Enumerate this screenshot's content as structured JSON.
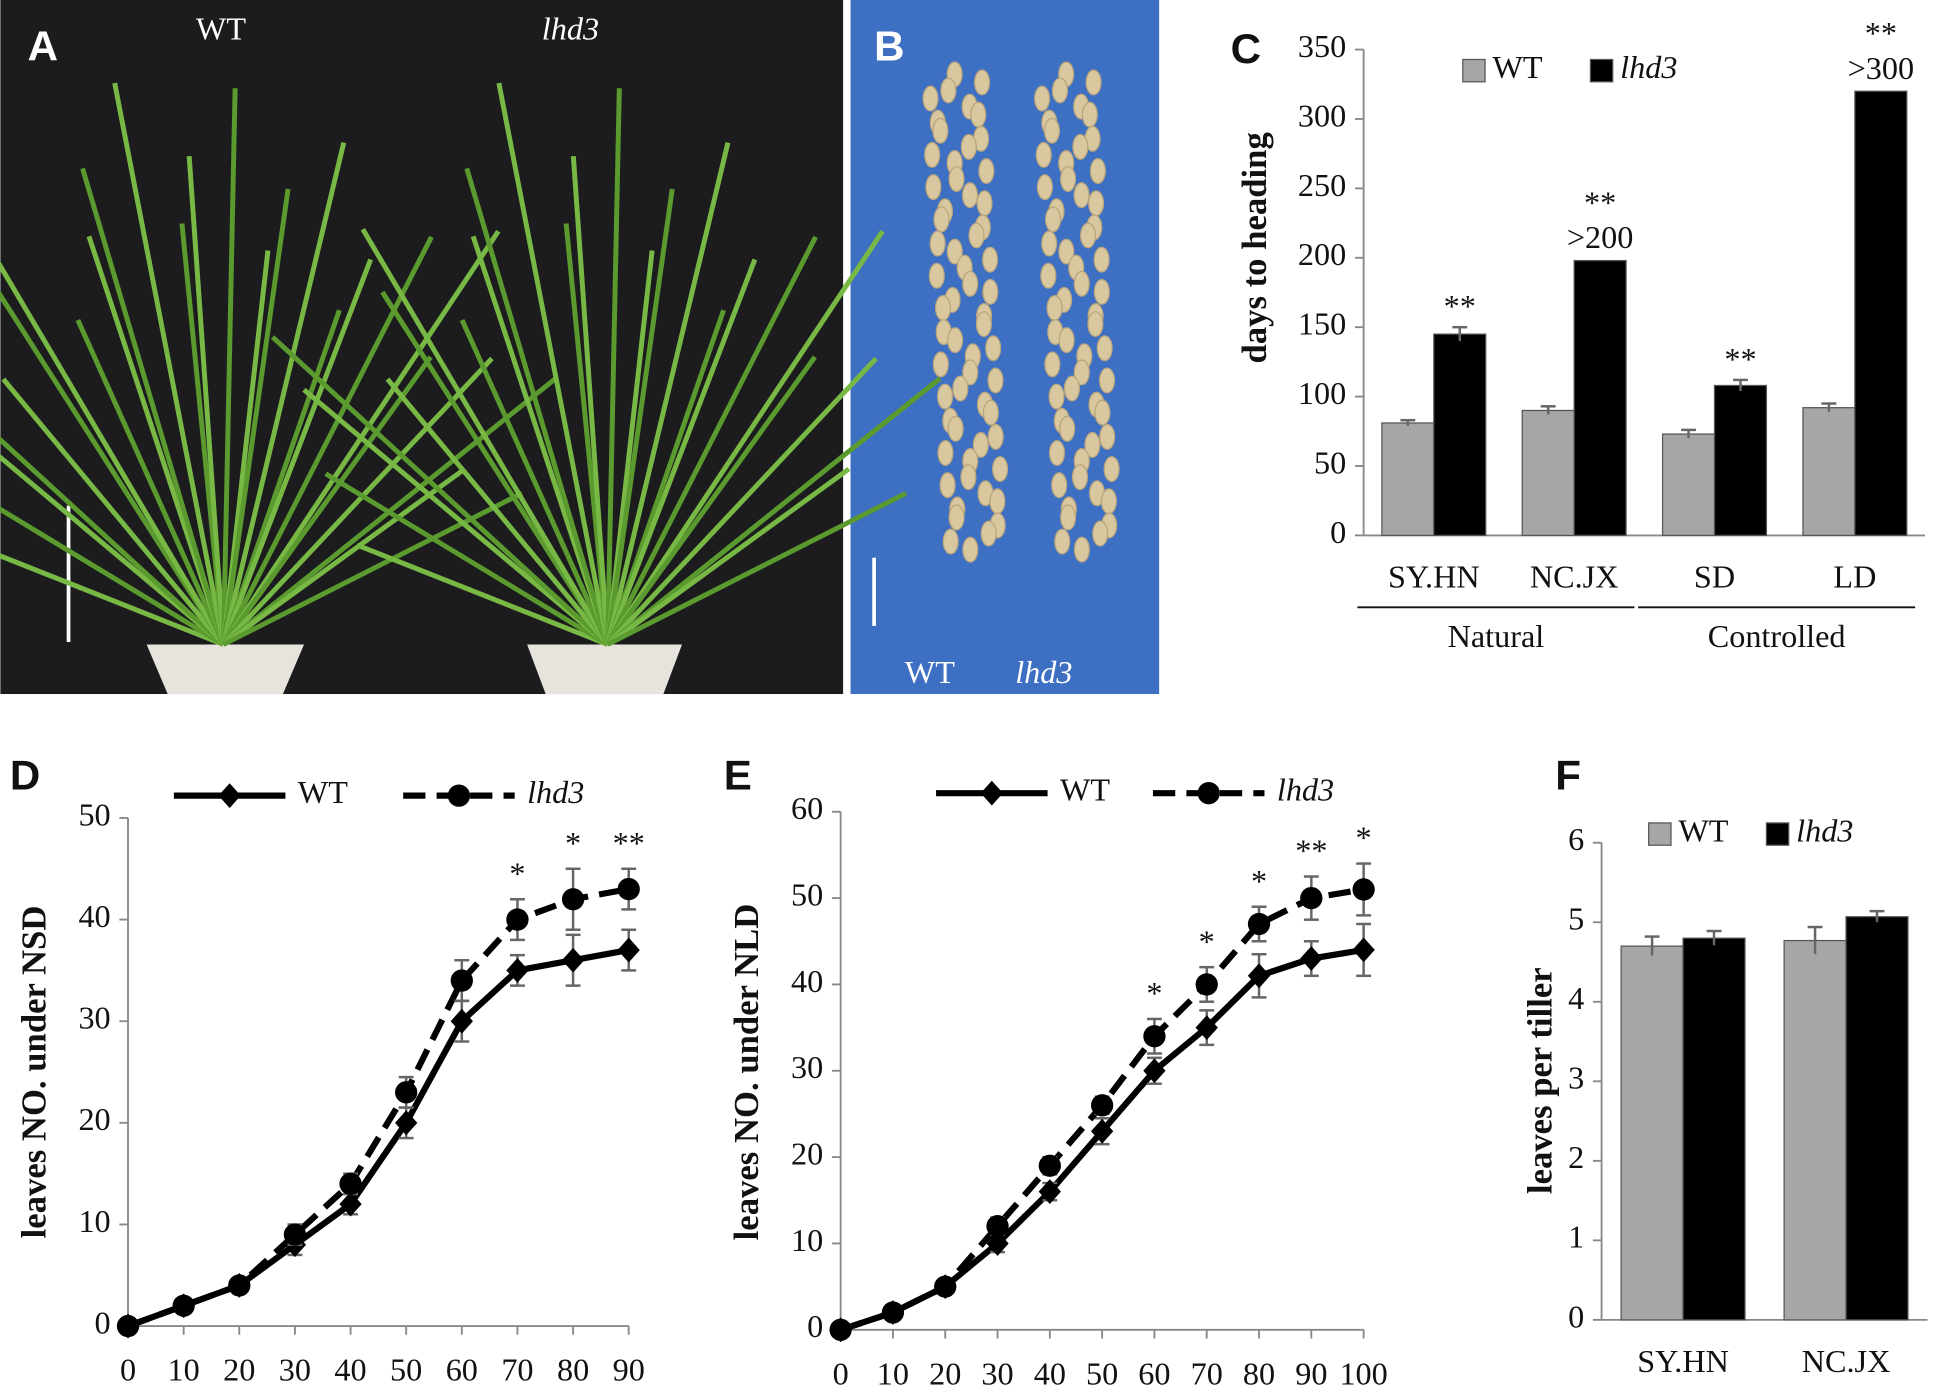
{
  "photo_panels": [
    {
      "panel": "A",
      "labels": [
        "WT",
        "lhd3"
      ]
    },
    {
      "panel": "B",
      "labels": [
        "WT",
        "lhd3"
      ]
    }
  ],
  "chart_data": [
    {
      "type": "bar",
      "panel": "C",
      "y_label": "days to heading",
      "categories": [
        "SY.HN",
        "NC.JX",
        "SD",
        "LD"
      ],
      "groups": [
        {
          "name": "Natural",
          "span": 2
        },
        {
          "name": "Controlled",
          "span": 2
        }
      ],
      "series": [
        {
          "name": "WT",
          "color": "#a6a6a6",
          "values": [
            81,
            90,
            73,
            92
          ],
          "errors": [
            2,
            3,
            3,
            3
          ]
        },
        {
          "name": "lhd3",
          "color": "#000000",
          "values": [
            145,
            198,
            108,
            320
          ],
          "errors": [
            5,
            null,
            4,
            null
          ],
          "significance": [
            "**",
            "**",
            "**",
            "**"
          ]
        }
      ],
      "annotations": [
        {
          "category": 1,
          "text": ">200"
        },
        {
          "category": 3,
          "text": ">300"
        }
      ],
      "ylim": [
        0,
        350
      ],
      "yticks": [
        0,
        50,
        100,
        150,
        200,
        250,
        300,
        350
      ]
    },
    {
      "type": "line",
      "panel": "D",
      "y_label": "leaves NO. under NSD",
      "x": [
        0,
        10,
        20,
        30,
        40,
        50,
        60,
        70,
        80,
        90
      ],
      "series": [
        {
          "name": "WT",
          "color": "#000000",
          "marker": "diamond",
          "dashed": false,
          "values": [
            0,
            2,
            4,
            8,
            12,
            20,
            30,
            35,
            36,
            37
          ],
          "errors": [
            0,
            0.3,
            0.3,
            1,
            1,
            1.5,
            2,
            1.5,
            2.5,
            2
          ]
        },
        {
          "name": "lhd3",
          "color": "#000000",
          "marker": "circle",
          "dashed": true,
          "values": [
            0,
            2,
            4,
            9,
            14,
            23,
            34,
            40,
            42,
            43
          ],
          "errors": [
            0,
            0.3,
            0.3,
            1,
            1,
            1.5,
            2,
            2,
            3,
            2
          ],
          "significance": [
            null,
            null,
            null,
            null,
            null,
            null,
            null,
            "*",
            "*",
            "**"
          ]
        }
      ],
      "xlim": [
        0,
        90
      ],
      "xticks": [
        0,
        10,
        20,
        30,
        40,
        50,
        60,
        70,
        80,
        90
      ],
      "ylim": [
        0,
        50
      ],
      "yticks": [
        0,
        10,
        20,
        30,
        40,
        50
      ]
    },
    {
      "type": "line",
      "panel": "E",
      "y_label": "leaves NO. under NLD",
      "x": [
        0,
        10,
        20,
        30,
        40,
        50,
        60,
        70,
        80,
        90,
        100
      ],
      "series": [
        {
          "name": "WT",
          "color": "#000000",
          "marker": "diamond",
          "dashed": false,
          "values": [
            0,
            2,
            5,
            10,
            16,
            23,
            30,
            35,
            41,
            43,
            44
          ],
          "errors": [
            0,
            0.3,
            0.5,
            1,
            1,
            1.5,
            1.5,
            2,
            2.5,
            2,
            3
          ]
        },
        {
          "name": "lhd3",
          "color": "#000000",
          "marker": "circle",
          "dashed": true,
          "values": [
            0,
            2,
            5,
            12,
            19,
            26,
            34,
            40,
            47,
            50,
            51
          ],
          "errors": [
            0,
            0.3,
            0.5,
            1,
            1,
            1,
            2,
            2,
            2,
            2.5,
            3
          ],
          "significance": [
            null,
            null,
            null,
            null,
            null,
            null,
            "*",
            "*",
            "*",
            "**",
            "*"
          ]
        }
      ],
      "xlim": [
        0,
        100
      ],
      "xticks": [
        0,
        10,
        20,
        30,
        40,
        50,
        60,
        70,
        80,
        90,
        100
      ],
      "ylim": [
        0,
        60
      ],
      "yticks": [
        0,
        10,
        20,
        30,
        40,
        50,
        60
      ]
    },
    {
      "type": "bar",
      "panel": "F",
      "y_label": "leaves per tiller",
      "categories": [
        "SY.HN",
        "NC.JX"
      ],
      "series": [
        {
          "name": "WT",
          "color": "#a6a6a6",
          "values": [
            4.7,
            4.77
          ],
          "errors": [
            0.12,
            0.17
          ]
        },
        {
          "name": "lhd3",
          "color": "#000000",
          "values": [
            4.8,
            5.07
          ],
          "errors": [
            0.09,
            0.07
          ]
        }
      ],
      "ylim": [
        0,
        6
      ],
      "yticks": [
        0,
        1,
        2,
        3,
        4,
        5,
        6
      ]
    }
  ]
}
